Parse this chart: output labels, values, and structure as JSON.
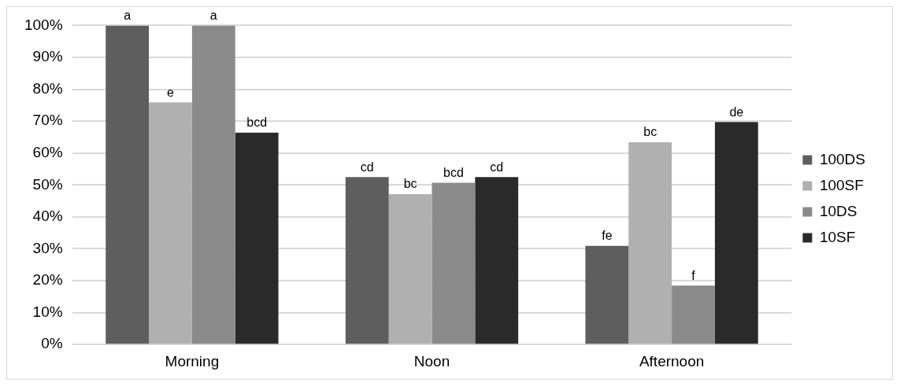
{
  "chart_data": {
    "type": "bar",
    "categories": [
      "Morning",
      "Noon",
      "Afternoon"
    ],
    "series": [
      {
        "name": "100DS",
        "color": "#5e5e5e",
        "values": [
          100,
          52.5,
          30.9
        ],
        "value_labels": [
          "a",
          "cd",
          "fe"
        ]
      },
      {
        "name": "100SF",
        "color": "#b0b0b0",
        "values": [
          75.9,
          47.1,
          63.4
        ],
        "value_labels": [
          "e",
          "bc",
          "bc"
        ]
      },
      {
        "name": "10DS",
        "color": "#8a8a8a",
        "values": [
          100,
          50.7,
          18.5
        ],
        "value_labels": [
          "a",
          "bcd",
          "f"
        ]
      },
      {
        "name": "10SF",
        "color": "#2a2a2a",
        "values": [
          66.4,
          52.5,
          69.7
        ],
        "value_labels": [
          "bcd",
          "cd",
          "de"
        ]
      }
    ],
    "ylim": [
      0,
      100
    ],
    "yticks": [
      {
        "value": 0,
        "label": "0%"
      },
      {
        "value": 10,
        "label": "10%"
      },
      {
        "value": 20,
        "label": "20%"
      },
      {
        "value": 30,
        "label": "30%"
      },
      {
        "value": 40,
        "label": "40%"
      },
      {
        "value": 50,
        "label": "50%"
      },
      {
        "value": 60,
        "label": "60%"
      },
      {
        "value": 70,
        "label": "70%"
      },
      {
        "value": 80,
        "label": "80%"
      },
      {
        "value": 90,
        "label": "90%"
      },
      {
        "value": 100,
        "label": "100%"
      }
    ],
    "grid": "y",
    "legend": "right"
  }
}
